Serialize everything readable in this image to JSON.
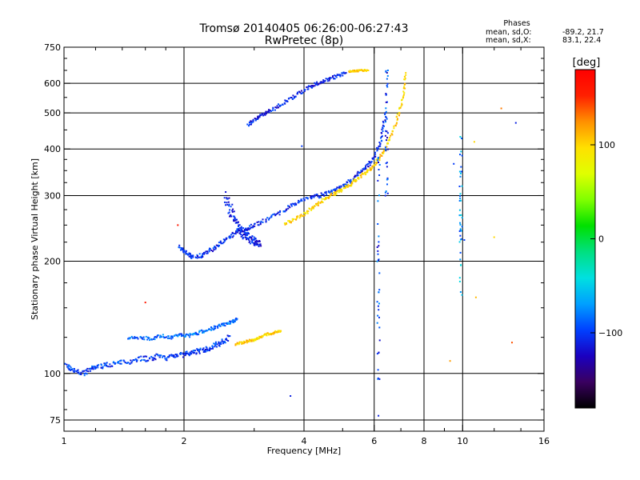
{
  "chart_data": {
    "type": "scatter",
    "title": "Tromsø 20140405 06:26:00-06:27:43",
    "subtitle": "RwPretec (8p)",
    "xlabel": "Frequency [MHz]",
    "ylabel": "Stationary phase Virtual Height [km]",
    "x_scale": "log",
    "y_scale": "log",
    "xlim": [
      1,
      16
    ],
    "ylim": [
      70,
      750
    ],
    "x_ticks": [
      1,
      2,
      4,
      6,
      8,
      10,
      16
    ],
    "x_tick_labels": [
      "1",
      "2",
      "4",
      "6",
      "8",
      "10",
      "16"
    ],
    "x_minor_ticks": [
      1.2,
      1.4,
      1.6,
      1.8,
      3,
      5,
      7,
      9,
      12,
      14
    ],
    "y_ticks": [
      75,
      100,
      200,
      300,
      400,
      500,
      600,
      750
    ],
    "y_tick_labels": [
      "75",
      "100",
      "200",
      "300",
      "400",
      "500",
      "600",
      "750"
    ],
    "y_minor_ticks": [
      80,
      90,
      125,
      150,
      175,
      225,
      250,
      275,
      325,
      350,
      375,
      450,
      550,
      650,
      700
    ],
    "grid": true,
    "colorbar": {
      "label": "[deg]",
      "range": [
        -180,
        180
      ],
      "ticks": [
        100,
        0,
        -100
      ],
      "tick_labels": [
        "100",
        "0",
        "−100"
      ],
      "palette": [
        "#000000",
        "#3a0060",
        "#1a00c0",
        "#0040ff",
        "#00a0ff",
        "#00e0e0",
        "#00e080",
        "#00e000",
        "#80ff00",
        "#e0ff00",
        "#ffe000",
        "#ff9000",
        "#ff2000",
        "#ff0000"
      ]
    },
    "stats": {
      "heading": "Phases",
      "o_label": "mean, sd,O:",
      "o_values": "-89.2, 21.7",
      "x_label": "mean, sd,X:",
      "x_values": "83.1, 22.4"
    },
    "traces": [
      {
        "x": [
          1.0,
          1.04,
          1.08,
          1.12,
          1.16,
          1.2,
          1.26,
          1.32,
          1.4,
          1.48,
          1.56,
          1.64,
          1.72,
          1.8,
          1.88,
          1.96,
          2.04,
          2.12,
          2.2,
          2.28,
          2.36,
          2.44,
          2.52,
          2.6
        ],
        "y": [
          106,
          103,
          101,
          100,
          102,
          104,
          105,
          106,
          107,
          108,
          110,
          109,
          111,
          110,
          112,
          112,
          113,
          114,
          115,
          116,
          118,
          120,
          122,
          126
        ],
        "phase": -100,
        "jitter": 0.03
      },
      {
        "x": [
          1.45,
          1.55,
          1.65,
          1.75,
          1.85,
          1.95,
          2.05,
          2.15,
          2.25,
          2.35,
          2.45,
          2.55,
          2.65,
          2.72
        ],
        "y": [
          124,
          125,
          124,
          126,
          125,
          127,
          126,
          128,
          130,
          132,
          134,
          136,
          138,
          140
        ],
        "phase": -85,
        "jitter": 0.02
      },
      {
        "x": [
          2.7,
          2.8,
          2.9,
          3.0,
          3.1,
          3.2,
          3.3,
          3.4,
          3.5
        ],
        "y": [
          120,
          121,
          122,
          123,
          125,
          127,
          128,
          129,
          130
        ],
        "phase": 100,
        "jitter": 0.015
      },
      {
        "x": [
          1.95,
          2.0,
          2.05,
          2.1,
          2.2,
          2.3,
          2.4,
          2.5,
          2.6,
          2.7,
          2.8,
          2.9,
          3.0,
          3.2,
          3.4,
          3.6,
          3.8,
          4.0,
          4.2,
          4.4,
          4.6,
          4.8,
          5.0,
          5.2,
          5.4,
          5.6,
          5.8,
          6.0,
          6.2,
          6.3,
          6.4
        ],
        "y": [
          218,
          212,
          208,
          206,
          207,
          212,
          218,
          225,
          232,
          238,
          242,
          246,
          250,
          258,
          266,
          276,
          286,
          294,
          298,
          300,
          305,
          310,
          318,
          326,
          338,
          350,
          362,
          380,
          410,
          450,
          500
        ],
        "phase": -105,
        "jitter": 0.025
      },
      {
        "x": [
          2.55,
          2.6,
          2.65,
          2.7,
          2.75,
          2.8,
          2.85,
          2.9,
          2.95,
          3.0,
          3.05,
          3.1
        ],
        "y": [
          300,
          280,
          265,
          255,
          248,
          240,
          235,
          232,
          230,
          226,
          224,
          222
        ],
        "phase": -110,
        "jitter": 0.05
      },
      {
        "x": [
          3.6,
          3.8,
          4.0,
          4.2,
          4.4,
          4.6,
          4.8,
          5.0,
          5.2,
          5.4,
          5.6,
          5.8,
          6.0,
          6.2,
          6.4,
          6.6,
          6.8,
          7.0,
          7.15,
          7.2
        ],
        "y": [
          252,
          260,
          268,
          278,
          288,
          298,
          305,
          312,
          320,
          330,
          340,
          350,
          362,
          380,
          400,
          430,
          470,
          520,
          580,
          640
        ],
        "phase": 100,
        "jitter": 0.02
      },
      {
        "x": [
          2.9,
          3.0,
          3.1,
          3.2,
          3.3,
          3.5,
          3.7,
          3.9,
          4.1,
          4.3,
          4.5,
          4.7,
          4.9,
          5.1
        ],
        "y": [
          465,
          478,
          488,
          498,
          508,
          525,
          545,
          565,
          585,
          598,
          608,
          620,
          630,
          640
        ],
        "phase": -110,
        "jitter": 0.02
      },
      {
        "x": [
          5.2,
          5.4,
          5.6,
          5.8
        ],
        "y": [
          645,
          648,
          650,
          650
        ],
        "phase": 100,
        "jitter": 0.01
      }
    ],
    "columns": [
      {
        "x": 6.15,
        "y_min": 90,
        "y_max": 380,
        "phase": -95
      },
      {
        "x": 6.45,
        "y_min": 300,
        "y_max": 650,
        "phase": -105
      },
      {
        "x": 9.9,
        "y_min": 160,
        "y_max": 440,
        "phase": -70
      }
    ],
    "outliers": [
      {
        "x": 3.7,
        "y": 87,
        "phase": -110
      },
      {
        "x": 6.15,
        "y": 77,
        "phase": -110
      },
      {
        "x": 1.6,
        "y": 155,
        "phase": 160
      },
      {
        "x": 1.93,
        "y": 250,
        "phase": 160
      },
      {
        "x": 3.95,
        "y": 407,
        "phase": -100
      },
      {
        "x": 9.5,
        "y": 365,
        "phase": -100
      },
      {
        "x": 10.7,
        "y": 418,
        "phase": 100
      },
      {
        "x": 12.5,
        "y": 514,
        "phase": 130
      },
      {
        "x": 13.6,
        "y": 470,
        "phase": -110
      },
      {
        "x": 10.1,
        "y": 228,
        "phase": -100
      },
      {
        "x": 12.0,
        "y": 232,
        "phase": 100
      },
      {
        "x": 10.8,
        "y": 160,
        "phase": 110
      },
      {
        "x": 13.3,
        "y": 121,
        "phase": 140
      },
      {
        "x": 9.3,
        "y": 108,
        "phase": 120
      }
    ]
  }
}
